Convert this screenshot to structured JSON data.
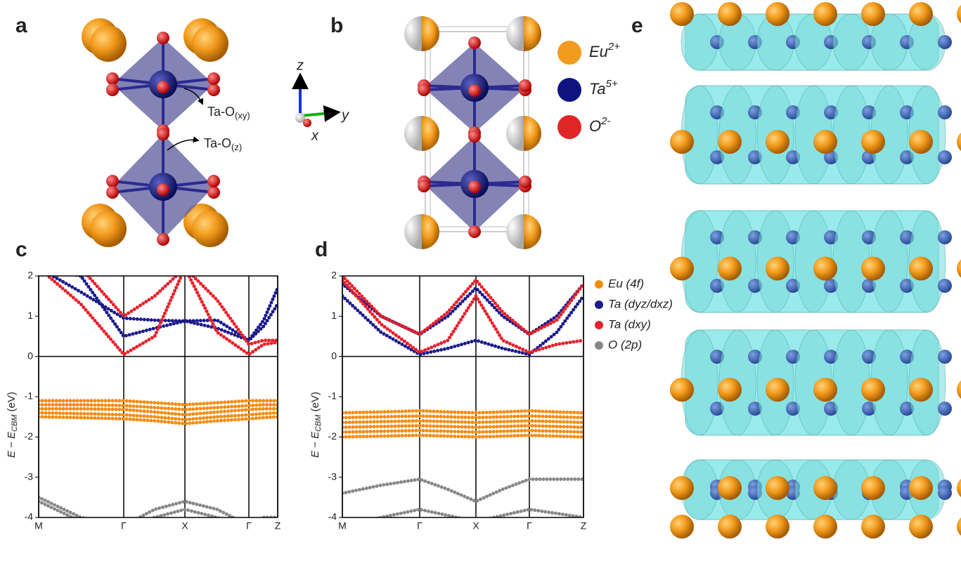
{
  "panel_labels": [
    "a",
    "b",
    "c",
    "d",
    "e"
  ],
  "structure_a": {
    "bond_xy": {
      "text": "Ta-O",
      "sub": "(xy)"
    },
    "bond_z": {
      "text": "Ta-O",
      "sub": "(z)"
    },
    "axes": [
      "z",
      "y",
      "x"
    ]
  },
  "structure_b": {
    "legend": [
      {
        "ion": "Eu",
        "charge": "2+",
        "color": "#f29b1d"
      },
      {
        "ion": "Ta",
        "charge": "5+",
        "color": "#0d1480"
      },
      {
        "ion": "O",
        "charge": "2-",
        "color": "#e02525"
      }
    ]
  },
  "chart_data": [
    {
      "type": "line",
      "ylabel": {
        "text": "E − E",
        "sub": "CBM",
        "unit": " (eV)"
      },
      "x": [
        0,
        0.6,
        1.21,
        1.65,
        2.08,
        2.54,
        2.99,
        3.2,
        3.4
      ],
      "xlim": [
        0,
        3.4
      ],
      "xticks": [
        {
          "value": 0,
          "label": "M"
        },
        {
          "value": 1.21,
          "label": "Γ"
        },
        {
          "value": 2.08,
          "label": "X"
        },
        {
          "value": 2.99,
          "label": "Γ"
        },
        {
          "value": 3.4,
          "label": "Z"
        }
      ],
      "ylim": [
        -4,
        2
      ],
      "yticks": [
        -4,
        -3,
        -2,
        -1,
        0,
        1,
        2
      ],
      "series": [
        {
          "name": "Eu (4f)",
          "color": "#f28c0f",
          "values": [
            [
              -1.1,
              -1.1,
              -1.1,
              -1.15,
              -1.2,
              -1.15,
              -1.1,
              -1.1,
              -1.1
            ],
            [
              -1.2,
              -1.2,
              -1.22,
              -1.27,
              -1.32,
              -1.27,
              -1.22,
              -1.2,
              -1.2
            ],
            [
              -1.3,
              -1.3,
              -1.32,
              -1.38,
              -1.45,
              -1.38,
              -1.32,
              -1.3,
              -1.3
            ],
            [
              -1.4,
              -1.42,
              -1.45,
              -1.5,
              -1.57,
              -1.5,
              -1.45,
              -1.42,
              -1.4
            ],
            [
              -1.5,
              -1.52,
              -1.55,
              -1.6,
              -1.67,
              -1.6,
              -1.55,
              -1.52,
              -1.5
            ]
          ]
        },
        {
          "name": "Ta (dyz/dxz)",
          "color": "#1a1a8c",
          "values": [
            [
              2.2,
              1.6,
              0.95,
              0.9,
              0.88,
              0.9,
              0.4,
              0.9,
              1.7
            ],
            [
              2.2,
              2.0,
              0.5,
              0.7,
              0.88,
              0.7,
              0.4,
              0.75,
              1.3
            ]
          ]
        },
        {
          "name": "Ta (dxy)",
          "color": "#e8202a",
          "values": [
            [
              2.2,
              1.3,
              0.05,
              0.5,
              2.2,
              0.6,
              0.05,
              0.3,
              0.35
            ],
            [
              2.2,
              2.2,
              1.0,
              1.5,
              2.2,
              1.4,
              0.3,
              0.4,
              0.4
            ]
          ]
        },
        {
          "name": "O (2p)",
          "color": "#888888",
          "values": [
            [
              -3.5,
              -4.0,
              -4.2,
              -3.8,
              -3.6,
              -3.8,
              -4.2,
              -4.0,
              -4.0
            ],
            [
              -3.6,
              -4.1,
              -4.3,
              -4.0,
              -3.8,
              -4.0,
              -4.3,
              -4.05,
              -4.05
            ]
          ]
        }
      ]
    },
    {
      "type": "line",
      "ylabel": {
        "text": "E − E",
        "sub": "CBM",
        "unit": " (eV)"
      },
      "x": [
        0,
        0.55,
        1.1,
        1.5,
        1.9,
        2.28,
        2.66,
        3.05,
        3.43
      ],
      "xlim": [
        0,
        3.43
      ],
      "xticks": [
        {
          "value": 0,
          "label": "M"
        },
        {
          "value": 1.1,
          "label": "Γ"
        },
        {
          "value": 1.9,
          "label": "X"
        },
        {
          "value": 2.66,
          "label": "Γ"
        },
        {
          "value": 3.43,
          "label": "Z"
        }
      ],
      "ylim": [
        -4,
        2
      ],
      "yticks": [
        -4,
        -3,
        -2,
        -1,
        0,
        1,
        2
      ],
      "legend": true,
      "series": [
        {
          "name": "Eu (4f)",
          "color": "#f28c0f",
          "values": [
            [
              -1.4,
              -1.38,
              -1.35,
              -1.38,
              -1.4,
              -1.38,
              -1.35,
              -1.38,
              -1.4
            ],
            [
              -1.52,
              -1.5,
              -1.48,
              -1.5,
              -1.52,
              -1.5,
              -1.48,
              -1.5,
              -1.52
            ],
            [
              -1.64,
              -1.62,
              -1.6,
              -1.62,
              -1.64,
              -1.62,
              -1.6,
              -1.62,
              -1.64
            ],
            [
              -1.76,
              -1.74,
              -1.72,
              -1.74,
              -1.76,
              -1.74,
              -1.72,
              -1.74,
              -1.76
            ],
            [
              -1.88,
              -1.86,
              -1.84,
              -1.86,
              -1.88,
              -1.86,
              -1.84,
              -1.86,
              -1.88
            ],
            [
              -2.0,
              -1.98,
              -1.96,
              -1.98,
              -2.0,
              -1.98,
              -1.96,
              -1.98,
              -2.0
            ]
          ]
        },
        {
          "name": "Ta (dyz/dxz)",
          "color": "#1a1a8c",
          "values": [
            [
              1.5,
              0.6,
              0.05,
              0.2,
              0.4,
              0.2,
              0.05,
              0.6,
              1.5
            ],
            [
              1.8,
              1.0,
              0.55,
              1.0,
              1.7,
              1.0,
              0.55,
              1.0,
              1.8
            ]
          ]
        },
        {
          "name": "Ta (dxy)",
          "color": "#e8202a",
          "values": [
            [
              2.0,
              1.0,
              0.55,
              1.1,
              1.9,
              1.1,
              0.55,
              0.9,
              1.8
            ],
            [
              1.9,
              0.8,
              0.1,
              0.4,
              1.5,
              0.4,
              0.1,
              0.3,
              0.4
            ]
          ]
        },
        {
          "name": "O (2p)",
          "color": "#888888",
          "values": [
            [
              -4.2,
              -4.0,
              -3.8,
              -3.95,
              -4.1,
              -3.95,
              -3.8,
              -3.9,
              -4.0
            ],
            [
              -3.4,
              -3.2,
              -3.05,
              -3.3,
              -3.6,
              -3.3,
              -3.05,
              -3.05,
              -3.05
            ]
          ]
        }
      ]
    }
  ]
}
